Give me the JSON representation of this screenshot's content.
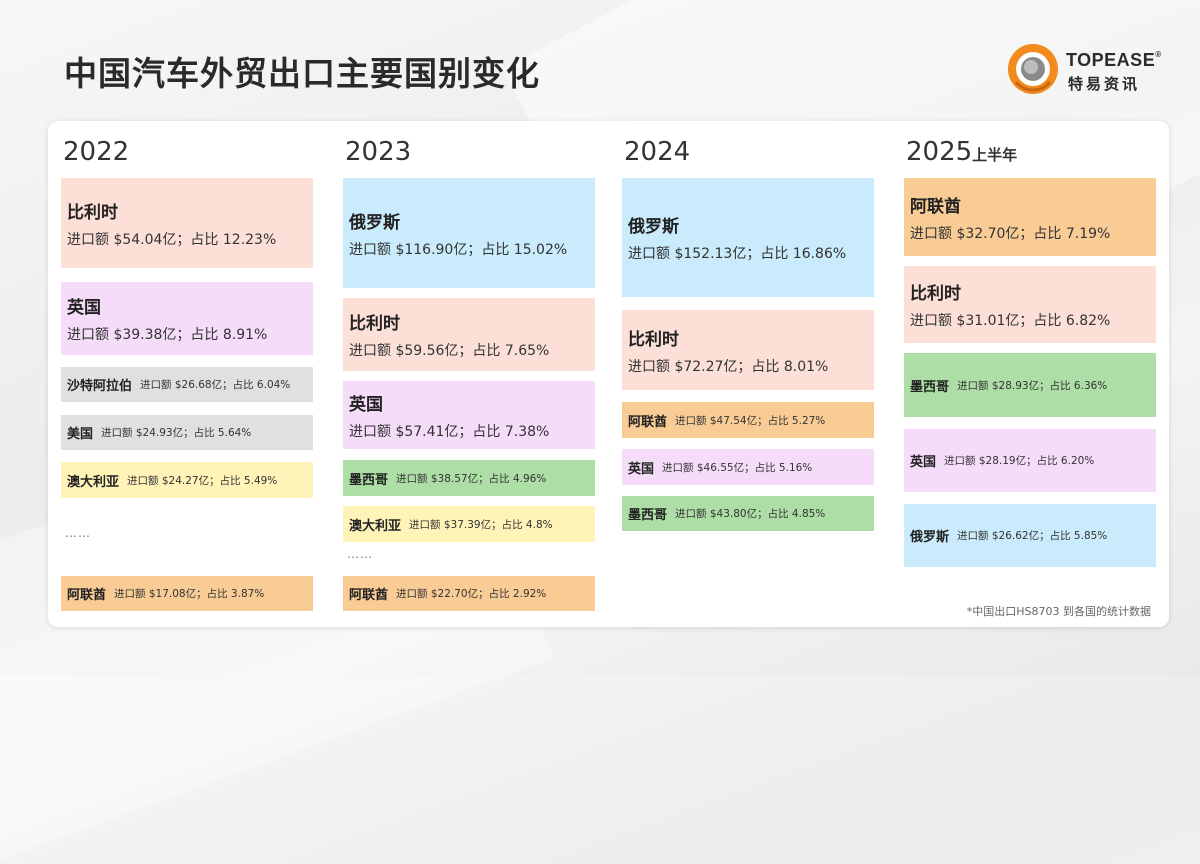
{
  "title": "中国汽车外贸出口主要国别变化",
  "logo": {
    "brand": "TOPEASE",
    "registered": "®",
    "subtitle": "特易资讯"
  },
  "colors": {
    "belgium": "#fce0d8",
    "uk": "#f5dcf9",
    "saudi": "#e0e0e0",
    "usa": "#e0e0e0",
    "australia": "#fff3b8",
    "uae": "#f9cc96",
    "russia": "#c9ebfb",
    "mexico": "#acdea5",
    "logo_orange": "#f28a1e"
  },
  "columns": [
    {
      "year": "2022",
      "suffix": "",
      "cards": [
        {
          "country": "比利时",
          "detail": "进口额 $54.04亿；占比 12.23%"
        },
        {
          "country": "英国",
          "detail": "进口额 $39.38亿；占比 8.91%"
        },
        {
          "country": "沙特阿拉伯",
          "detail": "进口额 $26.68亿；占比 6.04%"
        },
        {
          "country": "美国",
          "detail": "进口额 $24.93亿；占比 5.64%"
        },
        {
          "country": "澳大利亚",
          "detail": "进口额 $24.27亿；占比 5.49%"
        },
        {
          "country": "阿联酋",
          "detail": "进口额 $17.08亿；占比 3.87%"
        }
      ],
      "ellipsis": "……"
    },
    {
      "year": "2023",
      "suffix": "",
      "cards": [
        {
          "country": "俄罗斯",
          "detail": "进口额 $116.90亿；占比 15.02%"
        },
        {
          "country": "比利时",
          "detail": "进口额 $59.56亿；占比 7.65%"
        },
        {
          "country": "英国",
          "detail": "进口额 $57.41亿；占比 7.38%"
        },
        {
          "country": "墨西哥",
          "detail": "进口额 $38.57亿；占比 4.96%"
        },
        {
          "country": "澳大利亚",
          "detail": "进口额 $37.39亿；占比 4.8%"
        },
        {
          "country": "阿联酋",
          "detail": "进口额 $22.70亿；占比 2.92%"
        }
      ],
      "ellipsis": "……"
    },
    {
      "year": "2024",
      "suffix": "",
      "cards": [
        {
          "country": "俄罗斯",
          "detail": "进口额 $152.13亿；占比 16.86%"
        },
        {
          "country": "比利时",
          "detail": "进口额 $72.27亿；占比 8.01%"
        },
        {
          "country": "阿联酋",
          "detail": "进口额 $47.54亿；占比 5.27%"
        },
        {
          "country": "英国",
          "detail": "进口额 $46.55亿；占比 5.16%"
        },
        {
          "country": "墨西哥",
          "detail": "进口额 $43.80亿；占比 4.85%"
        }
      ]
    },
    {
      "year": "2025",
      "suffix": "上半年",
      "cards": [
        {
          "country": "阿联酋",
          "detail": "进口额 $32.70亿；占比 7.19%"
        },
        {
          "country": "比利时",
          "detail": "进口额 $31.01亿；占比 6.82%"
        },
        {
          "country": "墨西哥",
          "detail": "进口额 $28.93亿；占比 6.36%"
        },
        {
          "country": "英国",
          "detail": "进口额 $28.19亿；占比 6.20%"
        },
        {
          "country": "俄罗斯",
          "detail": "进口额 $26.62亿；占比 5.85%"
        }
      ]
    }
  ],
  "footnote": "*中国出口HS8703 到各国的统计数据"
}
